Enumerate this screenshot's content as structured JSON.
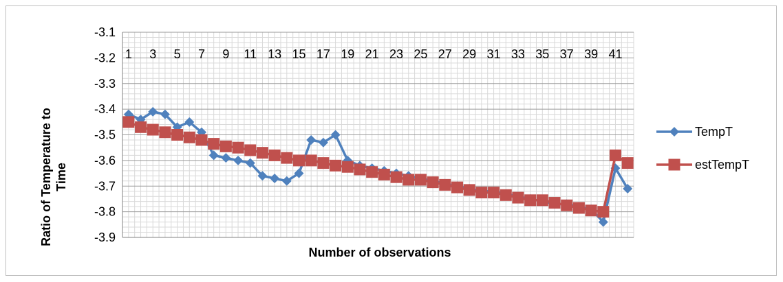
{
  "chart_data": {
    "type": "line",
    "title": "",
    "xlabel": "Number of observations",
    "ylabel_lines": [
      "Ratio of Temperature to",
      "Time"
    ],
    "ylim": [
      -3.9,
      -3.1
    ],
    "yticks": [
      -3.1,
      -3.2,
      -3.3,
      -3.4,
      -3.5,
      -3.6,
      -3.7,
      -3.8,
      -3.9
    ],
    "ytick_labels": [
      "-3.1",
      "-3.2",
      "-3.3",
      "-3.4",
      "-3.5",
      "-3.6",
      "-3.7",
      "-3.8",
      "-3.9"
    ],
    "x": [
      1,
      2,
      3,
      4,
      5,
      6,
      7,
      8,
      9,
      10,
      11,
      12,
      13,
      14,
      15,
      16,
      17,
      18,
      19,
      20,
      21,
      22,
      23,
      24,
      25,
      26,
      27,
      28,
      29,
      30,
      31,
      32,
      33,
      34,
      35,
      36,
      37,
      38,
      39,
      40,
      41,
      42
    ],
    "xtick_labels": [
      "1",
      "3",
      "5",
      "7",
      "9",
      "11",
      "13",
      "15",
      "17",
      "19",
      "21",
      "23",
      "25",
      "27",
      "29",
      "31",
      "33",
      "35",
      "37",
      "39",
      "41"
    ],
    "grid": true,
    "legend_position": "right",
    "series": [
      {
        "name": "TempT",
        "color": "#4F81BD",
        "marker": "diamond",
        "values": [
          -3.42,
          -3.44,
          -3.41,
          -3.42,
          -3.47,
          -3.45,
          -3.49,
          -3.58,
          -3.59,
          -3.6,
          -3.61,
          -3.66,
          -3.67,
          -3.68,
          -3.65,
          -3.52,
          -3.53,
          -3.5,
          -3.6,
          -3.62,
          -3.63,
          -3.64,
          -3.65,
          -3.66,
          -3.67,
          -3.68,
          -3.69,
          -3.7,
          -3.71,
          -3.72,
          -3.72,
          -3.73,
          -3.74,
          -3.75,
          -3.76,
          -3.77,
          -3.77,
          -3.78,
          -3.79,
          -3.84,
          -3.63,
          -3.71
        ]
      },
      {
        "name": "estTempT",
        "color": "#C0504D",
        "marker": "square",
        "values": [
          -3.45,
          -3.47,
          -3.48,
          -3.49,
          -3.5,
          -3.51,
          -3.52,
          -3.535,
          -3.545,
          -3.55,
          -3.56,
          -3.57,
          -3.58,
          -3.59,
          -3.6,
          -3.6,
          -3.61,
          -3.62,
          -3.625,
          -3.635,
          -3.645,
          -3.655,
          -3.665,
          -3.675,
          -3.675,
          -3.685,
          -3.695,
          -3.705,
          -3.715,
          -3.725,
          -3.725,
          -3.735,
          -3.745,
          -3.755,
          -3.755,
          -3.765,
          -3.775,
          -3.785,
          -3.795,
          -3.8,
          -3.58,
          -3.61
        ]
      }
    ]
  }
}
